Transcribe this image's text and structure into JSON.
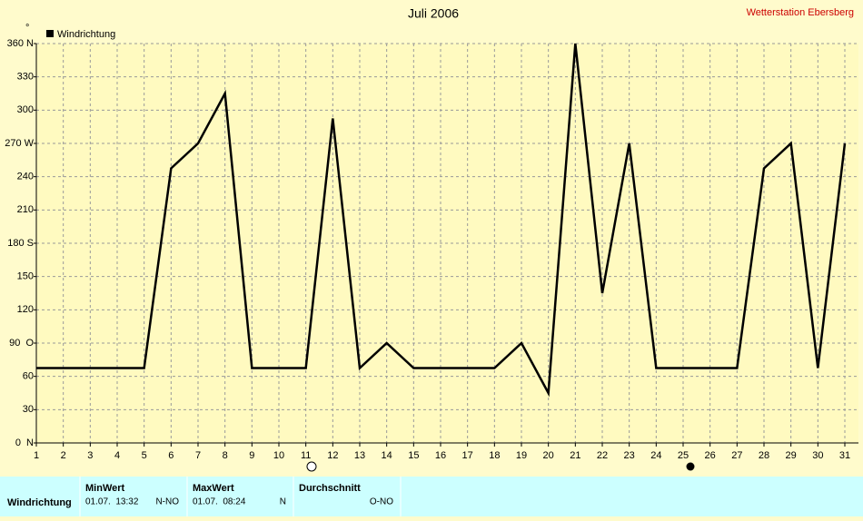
{
  "chart_data": {
    "type": "line",
    "title": "Juli 2006",
    "subtitle": "Wetterstation Ebersberg",
    "y_unit": "°",
    "x": [
      1,
      2,
      3,
      4,
      5,
      6,
      7,
      8,
      9,
      10,
      11,
      12,
      13,
      14,
      15,
      16,
      17,
      18,
      19,
      20,
      21,
      22,
      23,
      24,
      25,
      26,
      27,
      28,
      29,
      30,
      31
    ],
    "series": [
      {
        "name": "Windrichtung",
        "color": "#000000",
        "values": [
          67.5,
          67.5,
          67.5,
          67.5,
          67.5,
          247.5,
          270,
          315,
          67.5,
          67.5,
          67.5,
          292.5,
          67.5,
          90,
          67.5,
          67.5,
          67.5,
          67.5,
          90,
          45,
          360,
          135,
          270,
          67.5,
          67.5,
          67.5,
          67.5,
          247.5,
          270,
          67.5,
          270
        ]
      }
    ],
    "xlim": [
      1,
      31
    ],
    "xticks": [
      1,
      2,
      3,
      4,
      5,
      6,
      7,
      8,
      9,
      10,
      11,
      12,
      13,
      14,
      15,
      16,
      17,
      18,
      19,
      20,
      21,
      22,
      23,
      24,
      25,
      26,
      27,
      28,
      29,
      30,
      31
    ],
    "ylim": [
      0,
      360
    ],
    "yticks": [
      {
        "value": 0,
        "label": "0  N"
      },
      30,
      60,
      {
        "value": 90,
        "label": "90  O"
      },
      120,
      150,
      {
        "value": 180,
        "label": "180 S"
      },
      210,
      240,
      {
        "value": 270,
        "label": "270 W"
      },
      300,
      330,
      {
        "value": 360,
        "label": "360 N"
      }
    ],
    "grid": true,
    "legend": "top-left"
  },
  "table": {
    "headers": [
      "MinWert",
      "MaxWert",
      "Durchschnitt"
    ],
    "rows": [
      [
        "Windrichtung",
        "01.07.  13:32",
        "N-NO",
        "01.07.  08:24",
        "N",
        "O-NO"
      ]
    ]
  }
}
